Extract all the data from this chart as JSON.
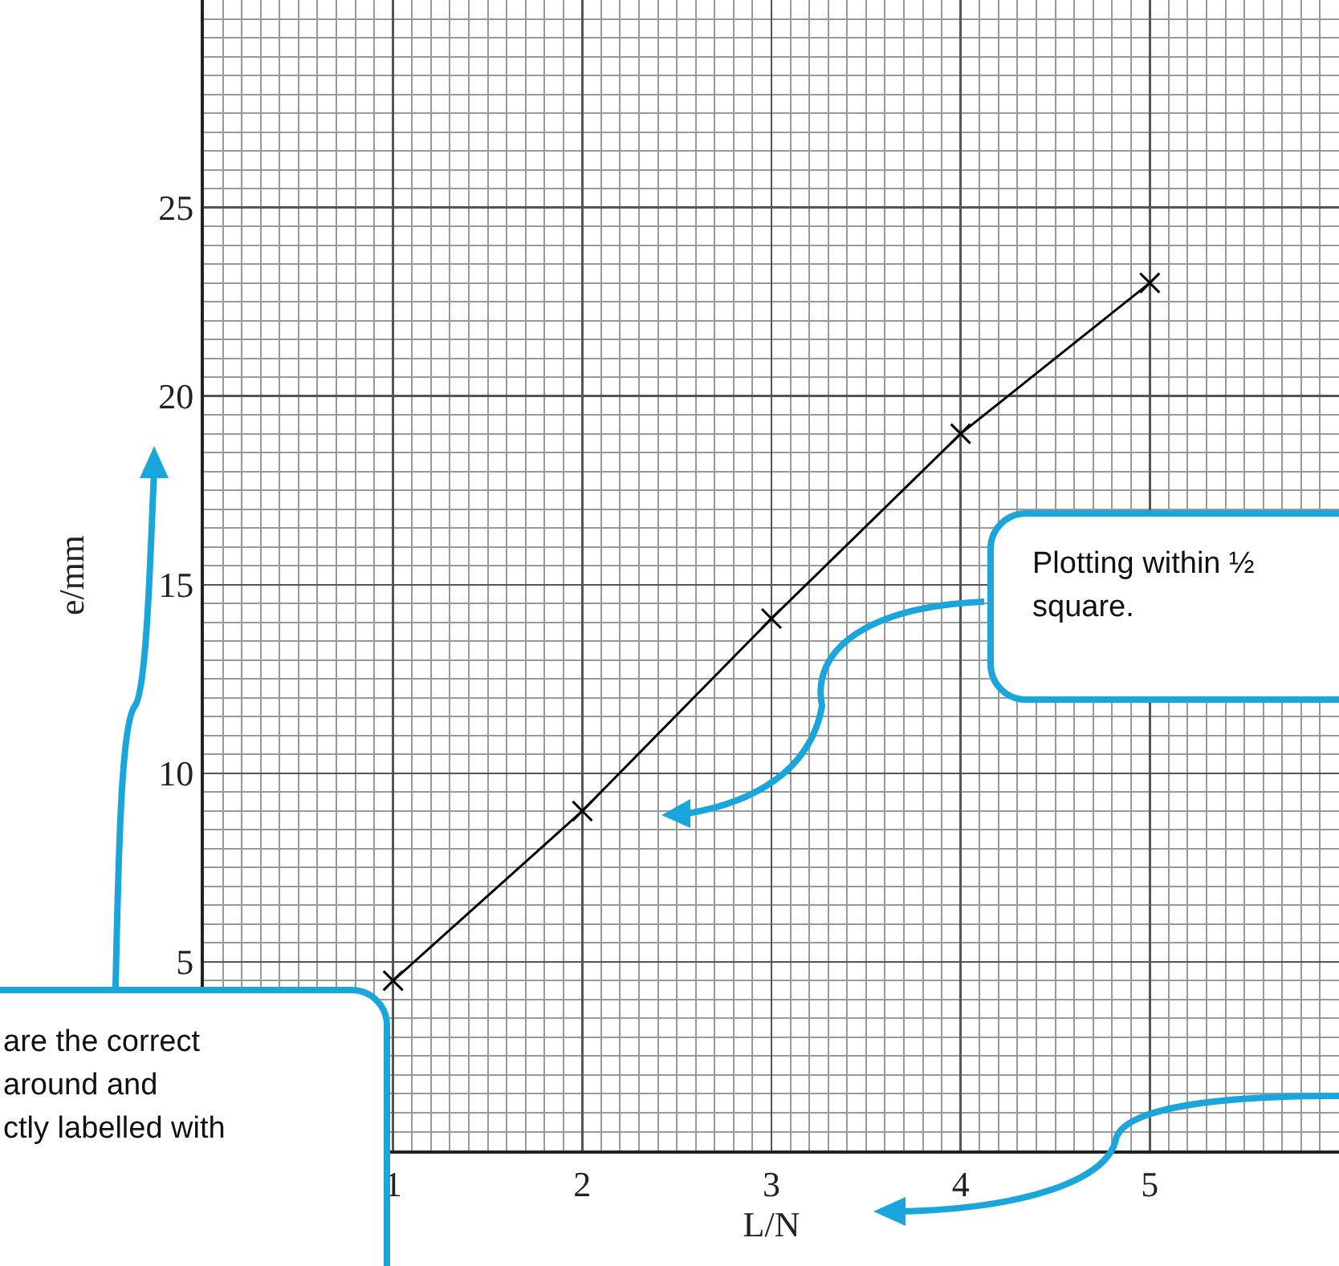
{
  "chart_data": {
    "type": "line",
    "xlabel": "L/N",
    "ylabel": "e/mm",
    "x": [
      1,
      2,
      3,
      4,
      5
    ],
    "series": [
      {
        "color": "#000000",
        "values": [
          4.5,
          9.0,
          14.1,
          19.0,
          23.0
        ]
      }
    ],
    "xlim": [
      0,
      6
    ],
    "ylim": [
      0,
      30.5
    ],
    "xticks": [
      1,
      2,
      3,
      4,
      5
    ],
    "yticks": [
      5,
      10,
      15,
      20,
      25
    ],
    "grid": true,
    "marker": "cross",
    "line_style": "solid",
    "annotations": [
      "Plotting within ½\nsquare.",
      "are the correct\naround and\nctly labelled with"
    ]
  }
}
